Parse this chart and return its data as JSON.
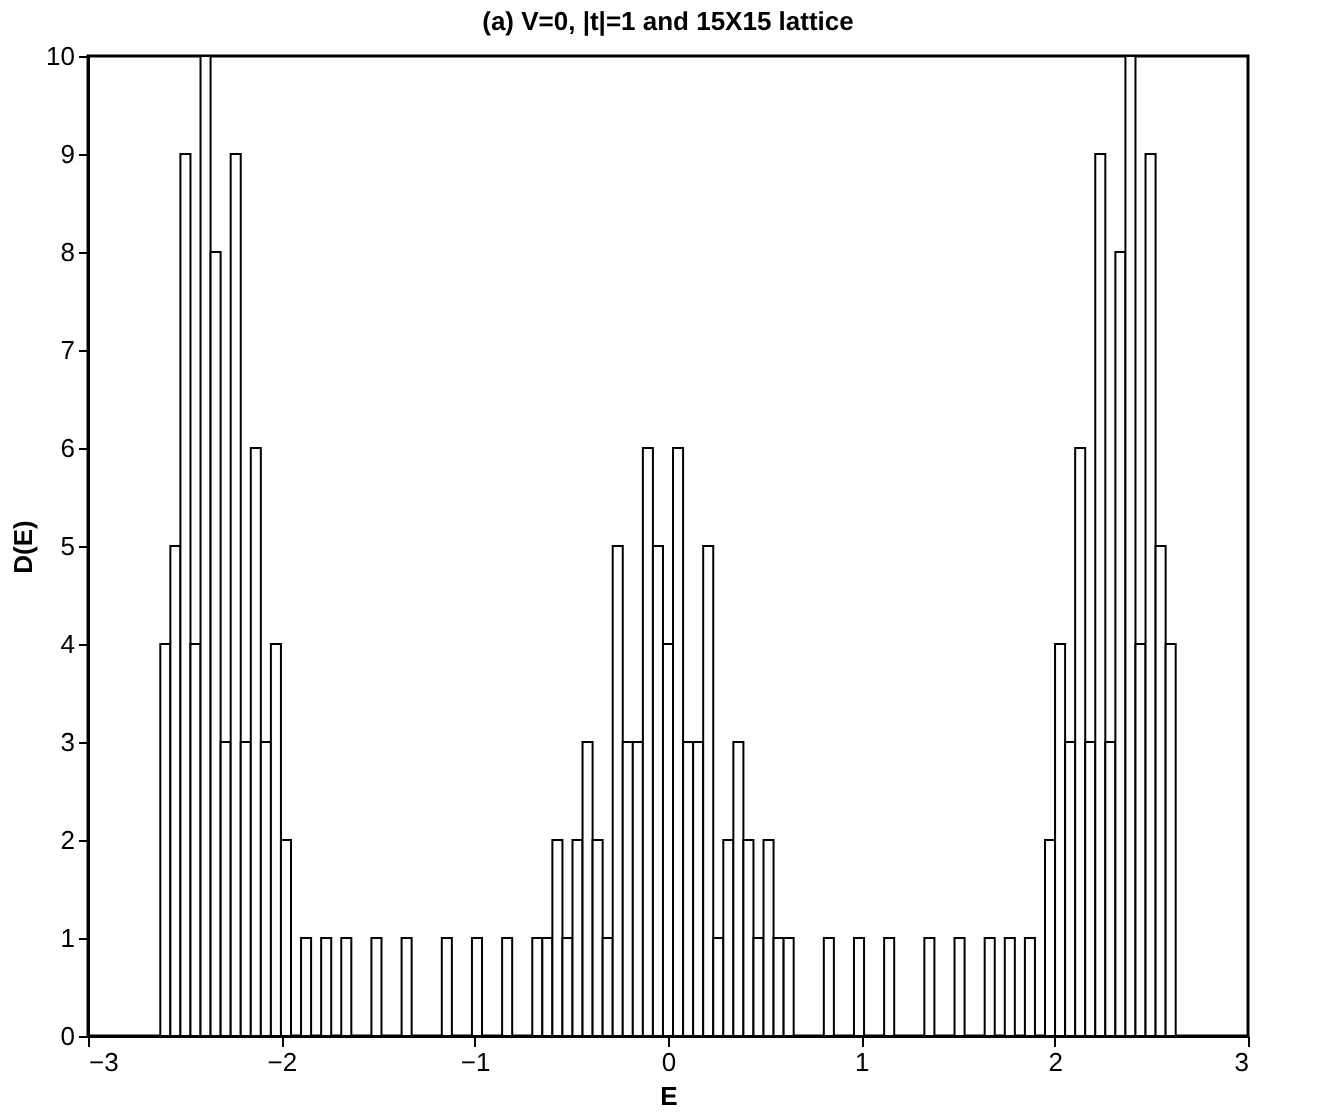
{
  "chart_data": {
    "type": "histogram",
    "title": "(a) V=0, |t|=1 and 15X15 lattice",
    "xlabel": "E",
    "ylabel": "D(E)",
    "bins": [
      -2.626,
      -2.574,
      -2.522,
      -2.47,
      -2.418,
      -2.366,
      -2.314,
      -2.262,
      -2.21,
      -2.158,
      -2.106,
      -2.054,
      -2.002,
      -1.95,
      -1.898,
      -1.846,
      -1.794,
      -1.742,
      -1.69,
      -1.638,
      -1.586,
      -1.534,
      -1.482,
      -1.43,
      -1.378,
      -1.326,
      -1.274,
      -1.222,
      -1.17,
      -1.118,
      -1.066,
      -1.014,
      -0.962,
      -0.91,
      -0.858,
      -0.806,
      -0.754,
      -0.702,
      -0.65,
      -0.598,
      -0.546,
      -0.494,
      -0.442,
      -0.39,
      -0.338,
      -0.286,
      -0.234,
      -0.182,
      -0.13,
      -0.078,
      -0.026,
      0.026,
      0.078,
      0.13,
      0.182,
      0.234,
      0.286,
      0.338,
      0.39,
      0.442,
      0.494,
      0.546,
      0.598,
      0.65,
      0.702,
      0.754,
      0.806,
      0.858,
      0.91,
      0.962,
      1.014,
      1.066,
      1.118,
      1.17,
      1.222,
      1.274,
      1.326,
      1.378,
      1.43,
      1.482,
      1.534,
      1.586,
      1.638,
      1.69,
      1.742,
      1.794,
      1.846,
      1.898,
      1.95,
      2.002,
      2.054,
      2.106,
      2.158,
      2.21,
      2.262,
      2.314,
      2.366,
      2.418,
      2.47,
      2.522,
      2.574,
      2.626
    ],
    "values": [
      4,
      5,
      9,
      4,
      10,
      8,
      3,
      9,
      3,
      6,
      3,
      4,
      2,
      0,
      1,
      0,
      1,
      0,
      1,
      0,
      0,
      1,
      0,
      0,
      1,
      0,
      0,
      0,
      1,
      0,
      0,
      1,
      0,
      0,
      1,
      0,
      0,
      1,
      1,
      2,
      1,
      2,
      3,
      2,
      1,
      5,
      3,
      3,
      6,
      5,
      4,
      6,
      3,
      3,
      5,
      1,
      2,
      3,
      2,
      1,
      2,
      1,
      1,
      0,
      0,
      0,
      1,
      0,
      0,
      1,
      0,
      0,
      1,
      0,
      0,
      0,
      1,
      0,
      0,
      1,
      0,
      0,
      1,
      0,
      1,
      0,
      1,
      0,
      2,
      4,
      3,
      6,
      3,
      9,
      3,
      8,
      10,
      4,
      9,
      5,
      4
    ],
    "color": "#ffffff",
    "xlim": [
      -3,
      3
    ],
    "xticks": [
      -3,
      -2,
      -1,
      0,
      1,
      2,
      3
    ],
    "ylim": [
      0,
      10
    ],
    "yticks": [
      0,
      1,
      2,
      3,
      4,
      5,
      6,
      7,
      8,
      9,
      10
    ],
    "grid": false
  }
}
